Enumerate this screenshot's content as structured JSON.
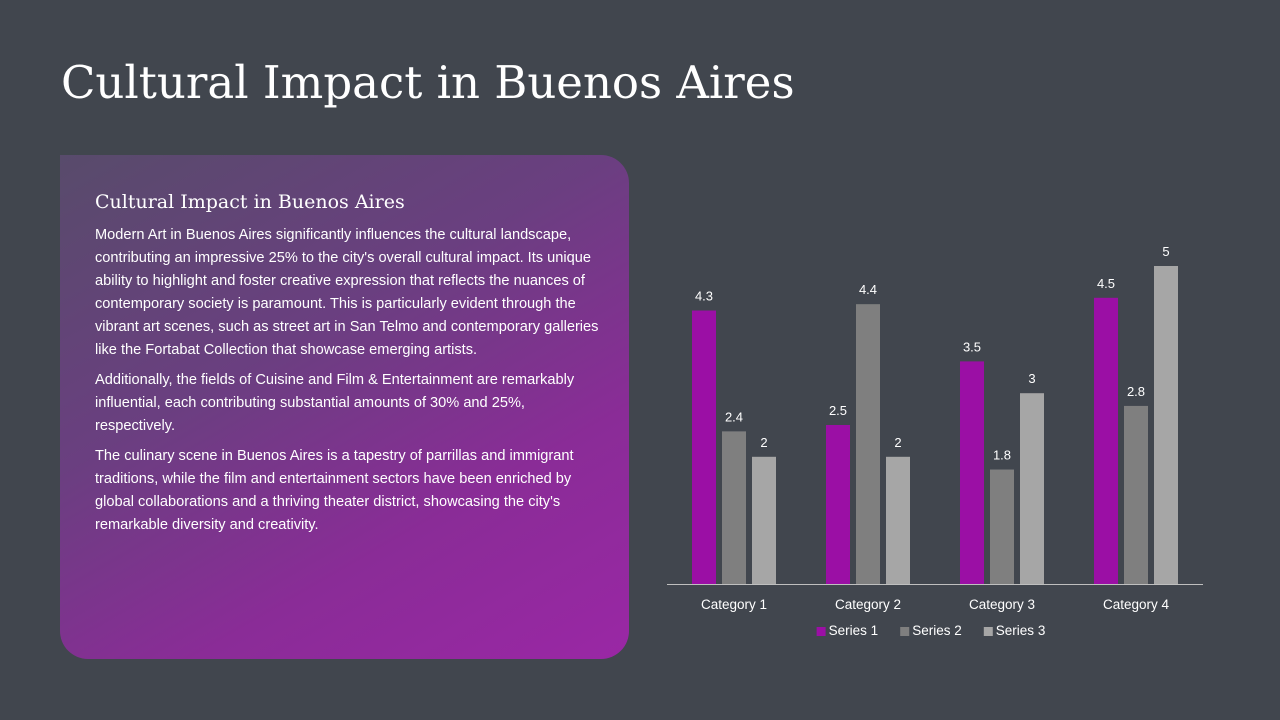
{
  "slide": {
    "title": "Cultural Impact in Buenos Aires"
  },
  "panel": {
    "heading": "Cultural Impact in Buenos Aires",
    "paragraphs": [
      "Modern Art in Buenos Aires significantly influences the cultural landscape, contributing an impressive 25% to the city's overall cultural impact. Its unique ability to highlight and foster creative expression that reflects the nuances of contemporary society is paramount. This is particularly evident through the vibrant art scenes, such as street art in San Telmo and contemporary galleries like the Fortabat Collection that showcase emerging artists.",
      "Additionally, the fields of Cuisine and Film & Entertainment are remarkably influential, each contributing substantial amounts of 30% and 25%, respectively.",
      "The culinary scene in Buenos Aires is a tapestry of parrillas and immigrant traditions, while the film and entertainment sectors have been enriched by global collaborations and a thriving theater district, showcasing the city's remarkable diversity and creativity."
    ]
  },
  "chart_data": {
    "type": "bar",
    "categories": [
      "Category 1",
      "Category 2",
      "Category 3",
      "Category 4"
    ],
    "series": [
      {
        "name": "Series 1",
        "values": [
          4.3,
          2.5,
          3.5,
          4.5
        ],
        "color": "#9b0fa5"
      },
      {
        "name": "Series 2",
        "values": [
          2.4,
          4.4,
          1.8,
          2.8
        ],
        "color": "#7f7f7f"
      },
      {
        "name": "Series 3",
        "values": [
          2,
          2,
          3,
          5
        ],
        "color": "#a6a6a6"
      }
    ],
    "ylim": [
      0,
      5
    ],
    "grid": false,
    "data_labels": true,
    "legend_position": "bottom",
    "axis_color": "#bfbfbf",
    "label_color": "#ffffff"
  }
}
